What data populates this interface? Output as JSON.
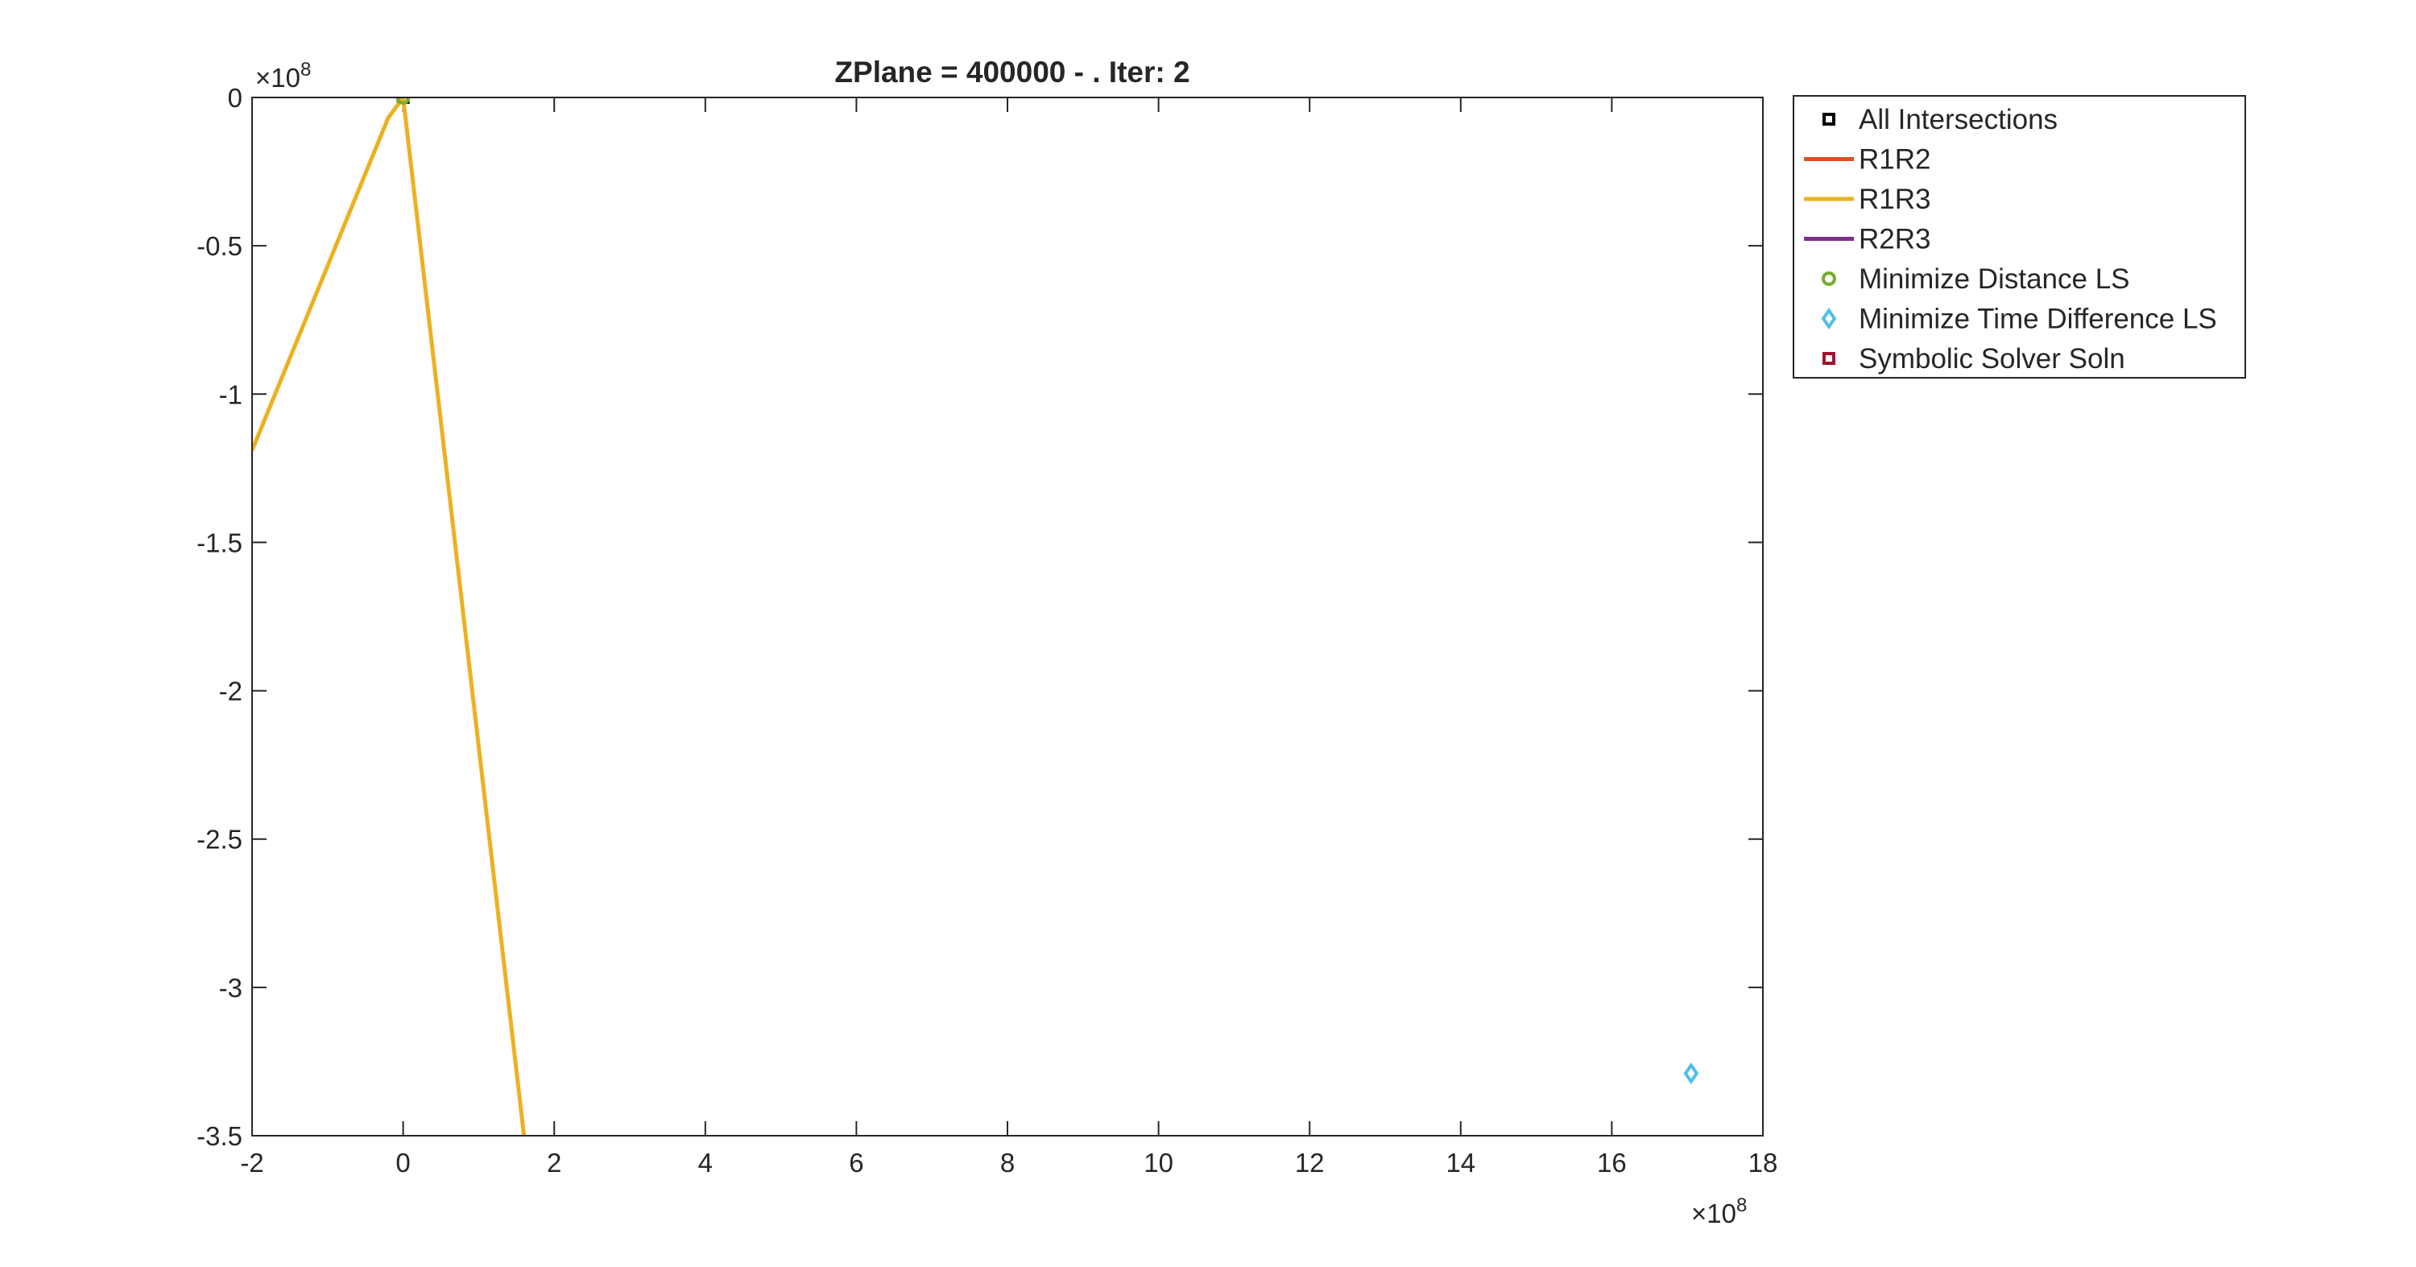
{
  "chart_data": {
    "type": "line",
    "title": "ZPlane = 400000 - . Iter: 2",
    "xlabel": "",
    "ylabel": "",
    "xlim": [
      -2,
      18
    ],
    "ylim": [
      -3.5,
      0
    ],
    "x_exponent": "8",
    "y_exponent": "8",
    "x_exponent_label": "×10",
    "y_exponent_label": "×10",
    "x_ticks": [
      -2,
      0,
      2,
      4,
      6,
      8,
      10,
      12,
      14,
      16,
      18
    ],
    "x_tick_labels": [
      "-2",
      "0",
      "2",
      "4",
      "6",
      "8",
      "10",
      "12",
      "14",
      "16",
      "18"
    ],
    "y_ticks": [
      0,
      -0.5,
      -1,
      -1.5,
      -2,
      -2.5,
      -3,
      -3.5
    ],
    "y_tick_labels": [
      "0",
      "-0.5",
      "-1",
      "-1.5",
      "-2",
      "-2.5",
      "-3",
      "-3.5"
    ],
    "grid": false,
    "legend_position": "outside-top-right",
    "series": [
      {
        "name": "All Intersections",
        "kind": "marker",
        "marker": "square",
        "color": "#000000",
        "points": [
          {
            "x": 0,
            "y": 0
          }
        ]
      },
      {
        "name": "R1R2",
        "kind": "line",
        "color": "#D95319",
        "points": []
      },
      {
        "name": "R1R3",
        "kind": "line",
        "color": "#EDB120",
        "points": [
          {
            "x": -2.0,
            "y": -1.19
          },
          {
            "x": -0.2,
            "y": -0.07
          },
          {
            "x": 0.0,
            "y": 0.0
          },
          {
            "x": 1.6,
            "y": -3.5
          }
        ]
      },
      {
        "name": "R2R3",
        "kind": "line",
        "color": "#7E2F8E",
        "points": []
      },
      {
        "name": "Minimize Distance LS",
        "kind": "marker",
        "marker": "circle",
        "color": "#77AC30",
        "points": [
          {
            "x": 0,
            "y": 0
          }
        ]
      },
      {
        "name": "Minimize Time Difference LS",
        "kind": "marker",
        "marker": "diamond",
        "color": "#4DBEEE",
        "points": [
          {
            "x": 17.05,
            "y": -3.29
          }
        ]
      },
      {
        "name": "Symbolic Solver Soln",
        "kind": "marker",
        "marker": "square",
        "color": "#A2142F",
        "points": []
      }
    ]
  }
}
